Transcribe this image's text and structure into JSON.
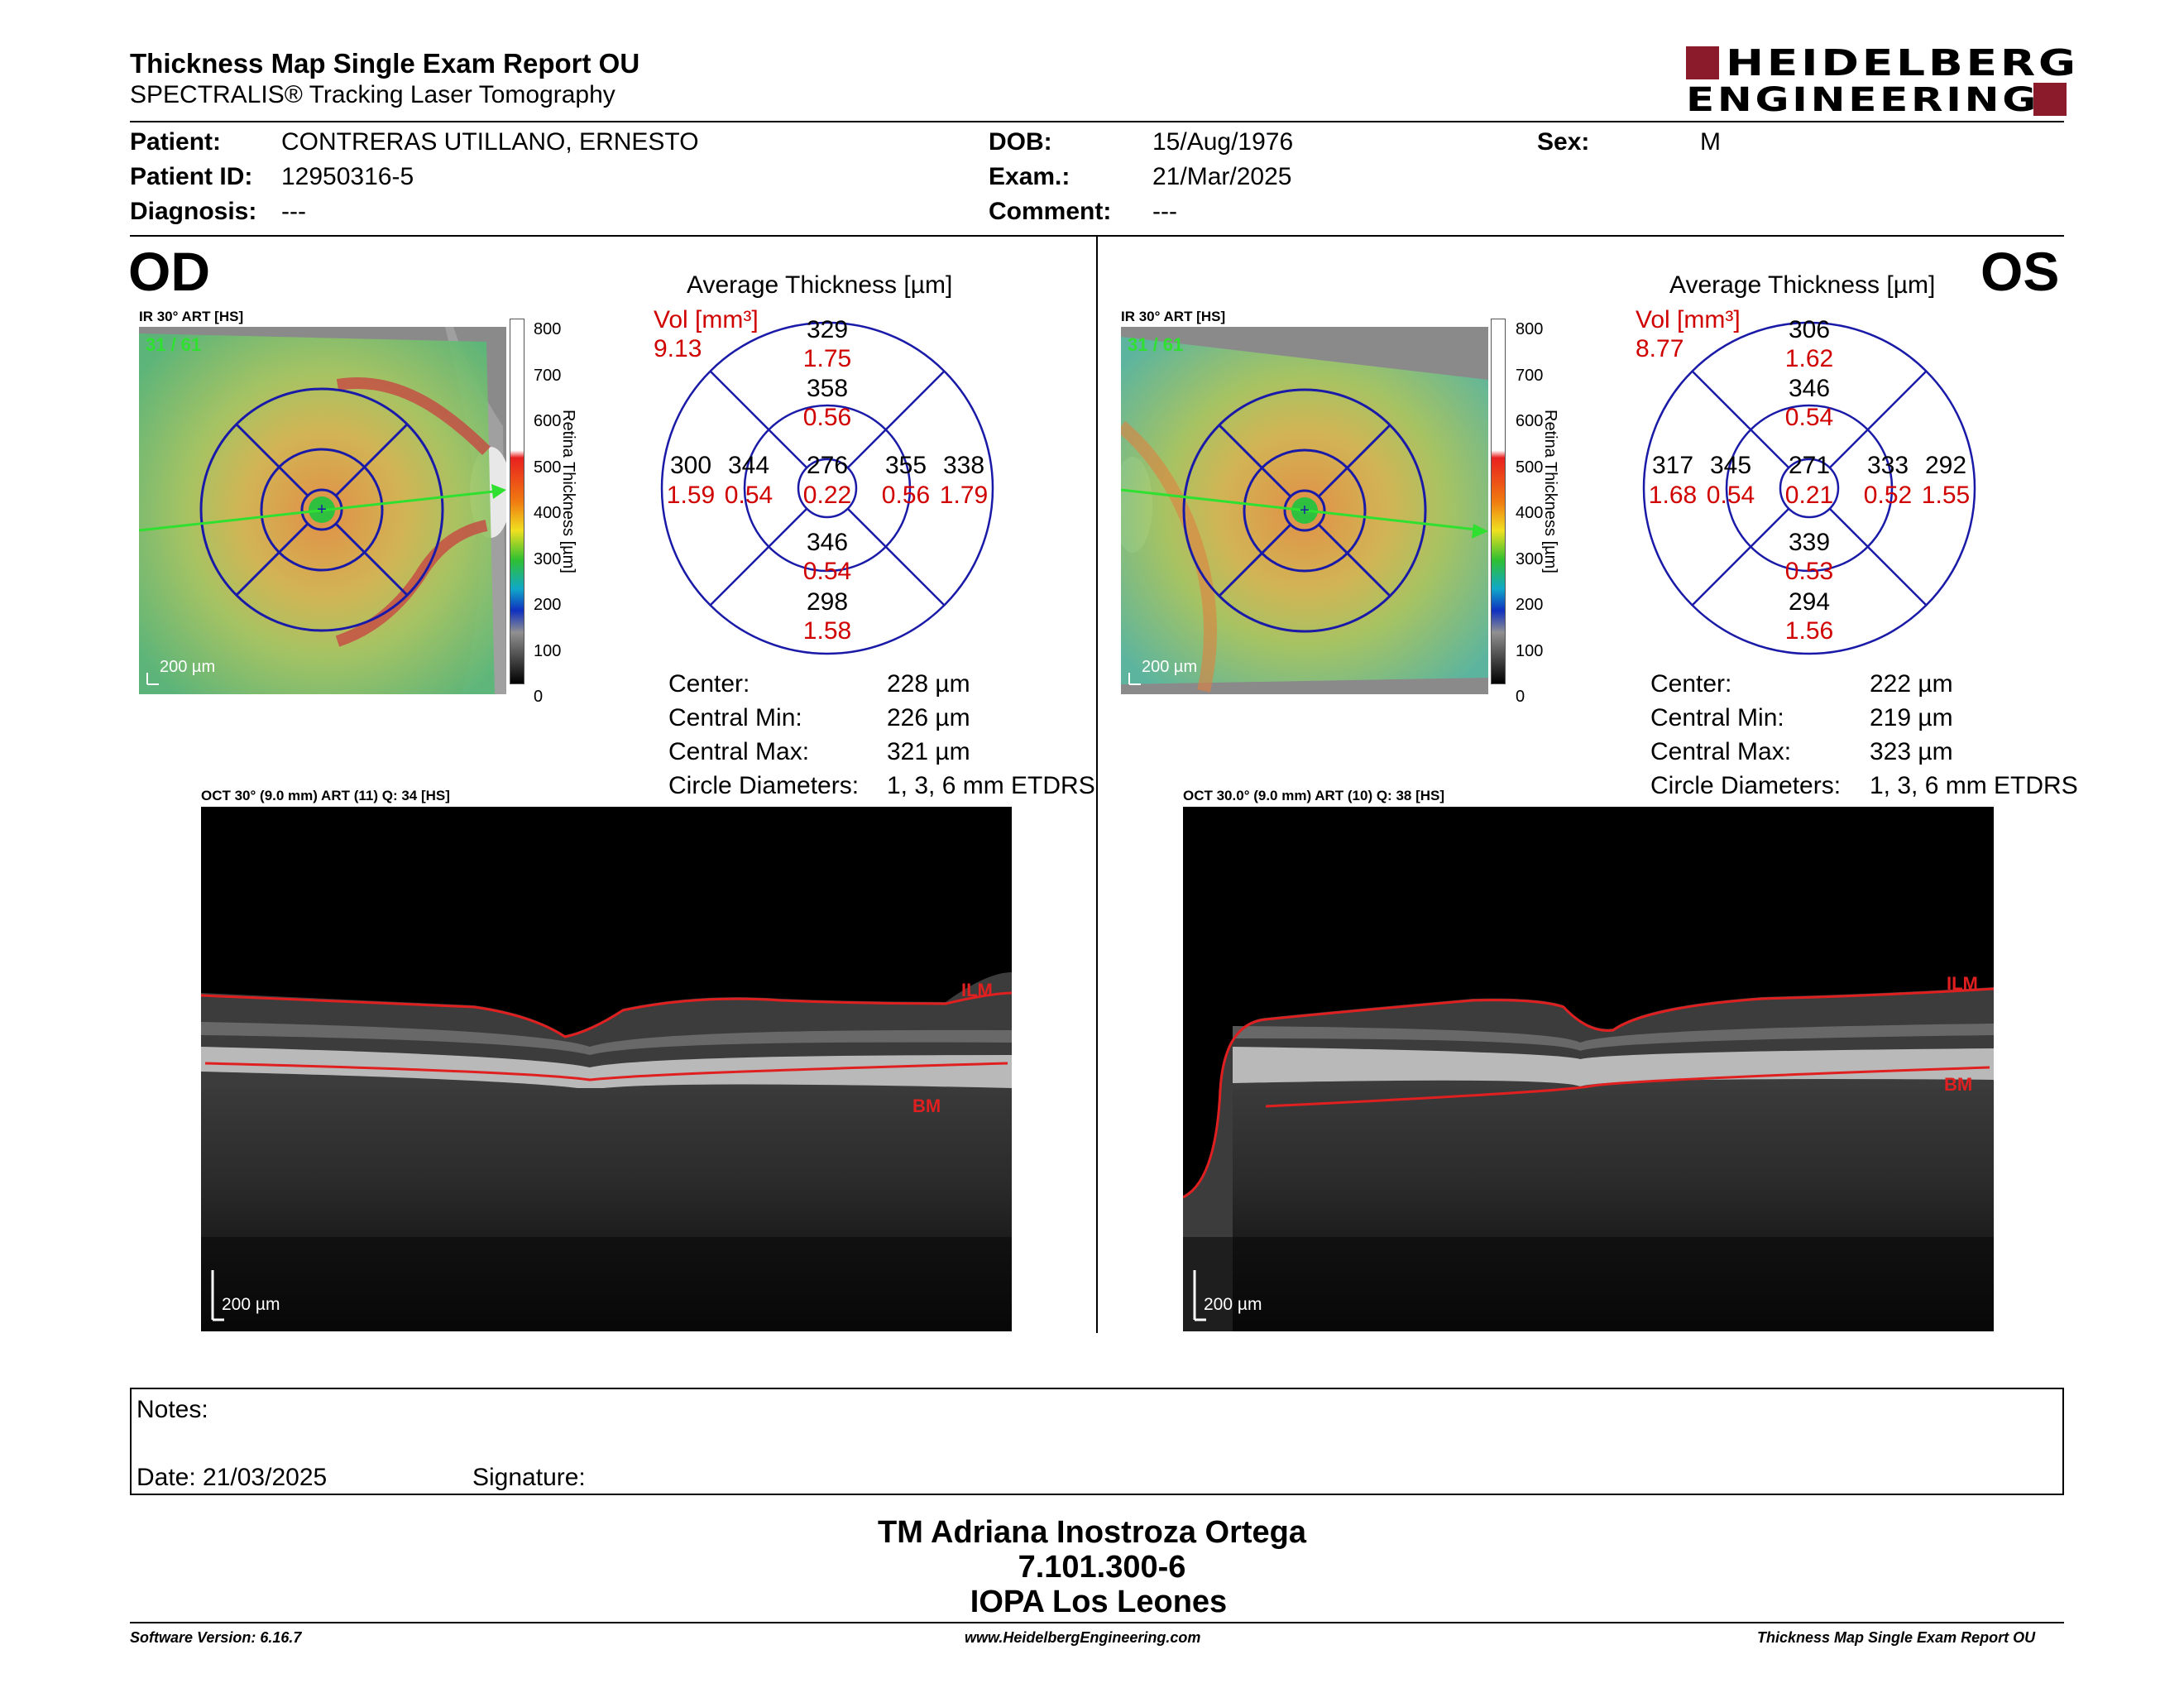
{
  "report": {
    "title": "Thickness Map Single Exam Report OU",
    "subtitle": "SPECTRALIS® Tracking Laser Tomography",
    "logo_line1": "HEIDELBERG",
    "logo_line2": "ENGINEERING",
    "brand_color": "#8b1a2b"
  },
  "patient": {
    "patient_label": "Patient:",
    "patient_value": "CONTRERAS UTILLANO, ERNESTO",
    "id_label": "Patient ID:",
    "id_value": "12950316-5",
    "diag_label": "Diagnosis:",
    "diag_value": "---",
    "dob_label": "DOB:",
    "dob_value": "15/Aug/1976",
    "exam_label": "Exam.:",
    "exam_value": "21/Mar/2025",
    "comment_label": "Comment:",
    "comment_value": "---",
    "sex_label": "Sex:",
    "sex_value": "M"
  },
  "od": {
    "eye": "OD",
    "ir_caption": "IR 30° ART [HS]",
    "frame_count": "31 / 61",
    "scale": "200 µm",
    "colorbar_ticks": [
      "800",
      "700",
      "600",
      "500",
      "400",
      "300",
      "200",
      "100",
      "0"
    ],
    "colorbar_label": "Retina Thickness [µm]",
    "avg_title": "Average Thickness [µm]",
    "vol_label": "Vol [mm³]",
    "vol_total": "9.13",
    "etdrs": {
      "center_t": "276",
      "center_v": "0.22",
      "inner_sup_t": "358",
      "inner_sup_v": "0.56",
      "inner_inf_t": "346",
      "inner_inf_v": "0.54",
      "inner_left_t": "344",
      "inner_left_v": "0.54",
      "inner_right_t": "355",
      "inner_right_v": "0.56",
      "outer_sup_t": "329",
      "outer_sup_v": "1.75",
      "outer_inf_t": "298",
      "outer_inf_v": "1.58",
      "outer_left_t": "300",
      "outer_left_v": "1.59",
      "outer_right_t": "338",
      "outer_right_v": "1.79"
    },
    "stats": {
      "center_label": "Center:",
      "center_value": "228 µm",
      "min_label": "Central Min:",
      "min_value": "226 µm",
      "max_label": "Central Max:",
      "max_value": "321 µm",
      "diam_label": "Circle Diameters:",
      "diam_value": "1, 3, 6 mm ETDRS"
    },
    "oct_caption": "OCT 30° (9.0 mm) ART (11) Q: 34 [HS]",
    "oct_scale": "200 µm",
    "ilm": "ILM",
    "bm": "BM"
  },
  "os": {
    "eye": "OS",
    "ir_caption": "IR 30° ART [HS]",
    "frame_count": "31 / 61",
    "scale": "200 µm",
    "colorbar_ticks": [
      "800",
      "700",
      "600",
      "500",
      "400",
      "300",
      "200",
      "100",
      "0"
    ],
    "colorbar_label": "Retina Thickness [µm]",
    "avg_title": "Average Thickness [µm]",
    "vol_label": "Vol [mm³]",
    "vol_total": "8.77",
    "etdrs": {
      "center_t": "271",
      "center_v": "0.21",
      "inner_sup_t": "346",
      "inner_sup_v": "0.54",
      "inner_inf_t": "339",
      "inner_inf_v": "0.53",
      "inner_left_t": "345",
      "inner_left_v": "0.54",
      "inner_right_t": "333",
      "inner_right_v": "0.52",
      "outer_sup_t": "306",
      "outer_sup_v": "1.62",
      "outer_inf_t": "294",
      "outer_inf_v": "1.56",
      "outer_left_t": "317",
      "outer_left_v": "1.68",
      "outer_right_t": "292",
      "outer_right_v": "1.55"
    },
    "stats": {
      "center_label": "Center:",
      "center_value": "222 µm",
      "min_label": "Central Min:",
      "min_value": "219 µm",
      "max_label": "Central Max:",
      "max_value": "323 µm",
      "diam_label": "Circle Diameters:",
      "diam_value": "1, 3, 6 mm ETDRS"
    },
    "oct_caption": "OCT 30.0° (9.0 mm) ART (10) Q: 38 [HS]",
    "oct_scale": "200 µm",
    "ilm": "ILM",
    "bm": "BM"
  },
  "notes": {
    "notes_label": "Notes:",
    "date_label": "Date: 21/03/2025",
    "signature_label": "Signature:"
  },
  "stamp": {
    "name": "TM Adriana Inostroza Ortega",
    "id": "7.101.300-6",
    "clinic": "IOPA Los Leones"
  },
  "footer": {
    "software": "Software Version: 6.16.7",
    "website": "www.HeidelbergEngineering.com",
    "report_name": "Thickness Map Single Exam Report OU"
  }
}
